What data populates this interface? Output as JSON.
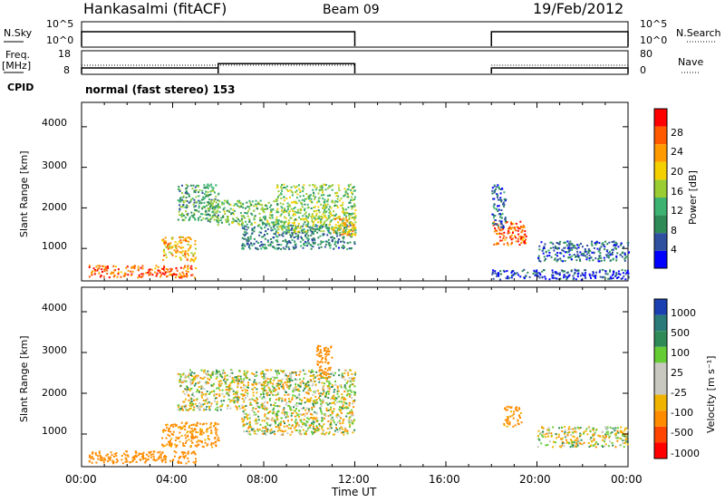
{
  "header": {
    "station": "Hankasalmi (fitACF)",
    "beam": "Beam 09",
    "date": "19/Feb/2012"
  },
  "strip_panels": {
    "nsky_label": "N.Sky",
    "nsky_ticks": [
      "10^5",
      "10^0"
    ],
    "nsearch_label": "N.Search",
    "nsearch_ticks": [
      "10^5",
      "10^0"
    ],
    "freq_label_line1": "Freq.",
    "freq_label_line2": "[MHz]",
    "freq_ticks": [
      "18",
      "8"
    ],
    "nave_label": "Nave",
    "nave_ticks": [
      "80",
      "0"
    ],
    "cpid_label": "CPID",
    "cpid_value": "normal (fast stereo) 153"
  },
  "power_panel": {
    "ylabel": "Slant Range [km]",
    "yticks": [
      "4000",
      "3000",
      "2000",
      "1000"
    ],
    "colorbar_label": "Power [dB]",
    "colorbar_ticks": [
      "28",
      "24",
      "20",
      "16",
      "12",
      "8",
      "4"
    ],
    "colorbar_colors": [
      "#ff0000",
      "#ff5a00",
      "#ff9a00",
      "#f5d000",
      "#9acd32",
      "#3cb371",
      "#2e8b57",
      "#2f4f9f",
      "#0000ff"
    ]
  },
  "velocity_panel": {
    "ylabel": "Slant Range [km]",
    "yticks": [
      "4000",
      "3000",
      "2000",
      "1000"
    ],
    "colorbar_label": "Velocity  [m s⁻¹]",
    "colorbar_ticks": [
      "1000",
      "500",
      "100",
      "25",
      "-25",
      "-100",
      "-500",
      "-1000"
    ],
    "colorbar_colors": [
      "#1a3fb0",
      "#2a7a7a",
      "#2e8b57",
      "#66cc33",
      "#c8c8c0",
      "#c8c8c0",
      "#f0b400",
      "#ff8c00",
      "#ff4500",
      "#ff0000"
    ]
  },
  "x_axis": {
    "ticks": [
      "00:00",
      "04:00",
      "08:00",
      "12:00",
      "16:00",
      "20:00",
      "00:00"
    ],
    "label": "Time UT"
  },
  "chart_data": {
    "type": "heatmap",
    "title": "Hankasalmi (fitACF)",
    "subtitle": "Beam 09",
    "xlabel": "Time UT",
    "ylabel": "Slant Range [km]",
    "xlim": [
      0,
      24
    ],
    "ylim": [
      200,
      4600
    ],
    "data_gap_hours": [
      12,
      18
    ],
    "power_regions": [
      {
        "t0": 0.3,
        "t1": 5.0,
        "r0": 300,
        "r1": 600,
        "value_db": 26
      },
      {
        "t0": 3.5,
        "t1": 5.0,
        "r0": 700,
        "r1": 1300,
        "value_db": 22
      },
      {
        "t0": 4.2,
        "t1": 6.0,
        "r0": 1700,
        "r1": 2600,
        "value_db": 12
      },
      {
        "t0": 5.5,
        "t1": 8.5,
        "r0": 1600,
        "r1": 2200,
        "value_db": 14
      },
      {
        "t0": 7.0,
        "t1": 12.0,
        "r0": 1000,
        "r1": 1600,
        "value_db": 10
      },
      {
        "t0": 8.5,
        "t1": 12.0,
        "r0": 1400,
        "r1": 2600,
        "value_db": 16
      },
      {
        "t0": 11.0,
        "t1": 12.0,
        "r0": 1300,
        "r1": 1800,
        "value_db": 22
      },
      {
        "t0": 18.0,
        "t1": 19.5,
        "r0": 1100,
        "r1": 1700,
        "value_db": 26
      },
      {
        "t0": 18.0,
        "t1": 18.6,
        "r0": 1500,
        "r1": 2600,
        "value_db": 8
      },
      {
        "t0": 20.0,
        "t1": 24.0,
        "r0": 700,
        "r1": 1200,
        "value_db": 8
      },
      {
        "t0": 18.0,
        "t1": 24.0,
        "r0": 250,
        "r1": 500,
        "value_db": 6
      }
    ],
    "velocity_regions": [
      {
        "t0": 0.3,
        "t1": 5.0,
        "r0": 300,
        "r1": 600,
        "value_ms": -300
      },
      {
        "t0": 3.5,
        "t1": 6.0,
        "r0": 700,
        "r1": 1300,
        "value_ms": -200
      },
      {
        "t0": 4.2,
        "t1": 7.0,
        "r0": 1600,
        "r1": 2600,
        "value_ms": 0
      },
      {
        "t0": 7.0,
        "t1": 12.0,
        "r0": 1000,
        "r1": 2600,
        "value_ms": 0
      },
      {
        "t0": 10.3,
        "t1": 11.0,
        "r0": 2400,
        "r1": 3200,
        "value_ms": -300
      },
      {
        "t0": 18.5,
        "t1": 19.3,
        "r0": 1200,
        "r1": 1700,
        "value_ms": -200
      },
      {
        "t0": 20.0,
        "t1": 24.0,
        "r0": 700,
        "r1": 1200,
        "value_ms": 0
      }
    ],
    "freq_mhz": [
      {
        "t0": 0,
        "t1": 6,
        "value": 10.5
      },
      {
        "t0": 6,
        "t1": 12,
        "value": 12.5
      },
      {
        "t0": 18,
        "t1": 24,
        "value": 10.5
      }
    ],
    "nave": [
      {
        "t0": 0,
        "t1": 12,
        "value": 30
      },
      {
        "t0": 18,
        "t1": 24,
        "value": 30
      }
    ],
    "nsky_level": [
      {
        "t0": 0,
        "t1": 12,
        "value": 100000
      },
      {
        "t0": 18,
        "t1": 24,
        "value": 100000
      }
    ]
  }
}
